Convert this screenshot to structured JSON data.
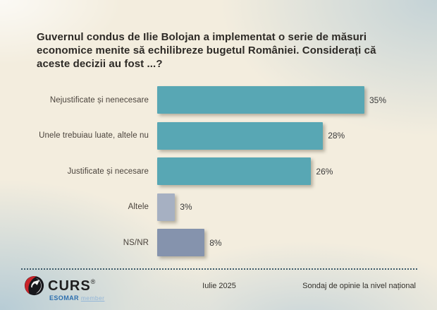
{
  "header": {
    "title_lines": [
      "Guvernul condus de Ilie Bolojan a implementat o serie de măsuri",
      "economice menite să echilibreze bugetul României. Considerați că",
      "aceste decizii au fost ...?"
    ]
  },
  "chart_data": {
    "type": "bar",
    "orientation": "horizontal",
    "title": "Guvernul condus de Ilie Bolojan a implementat o serie de măsuri economice menite să echilibreze bugetul României. Considerați că aceste decizii au fost ...?",
    "categories": [
      "Nejustificate și nenecesare",
      "Unele trebuiau luate, altele nu",
      "Justificate și necesare",
      "Altele",
      "NS/NR"
    ],
    "values": [
      35,
      28,
      26,
      3,
      8
    ],
    "value_labels": [
      "35%",
      "28%",
      "26%",
      "3%",
      "8%"
    ],
    "bar_colors": [
      "#58a7b4",
      "#58a7b4",
      "#58a7b4",
      "#a6b0c2",
      "#8593ad"
    ],
    "xlim": [
      0,
      40
    ],
    "grid": false,
    "legend": false,
    "value_label_position": "right-of-bar"
  },
  "footer": {
    "logo": {
      "brand": "CURS",
      "registered": "®",
      "esomar": "ESOMAR",
      "member": "member",
      "icon_black": "#17171c",
      "icon_red": "#c9242a"
    },
    "date": "Iulie 2025",
    "note": "Sondaj de opinie la nivel național"
  },
  "colors": {
    "background_cream": "#f3edde",
    "background_blue_tint": "#c3d3db",
    "teal_bar": "#58a7b4",
    "altele_bar": "#a6b0c2",
    "nsnr_bar": "#8593ad",
    "title_text": "#2d2a26",
    "divider_dotted": "#3c5a68"
  }
}
